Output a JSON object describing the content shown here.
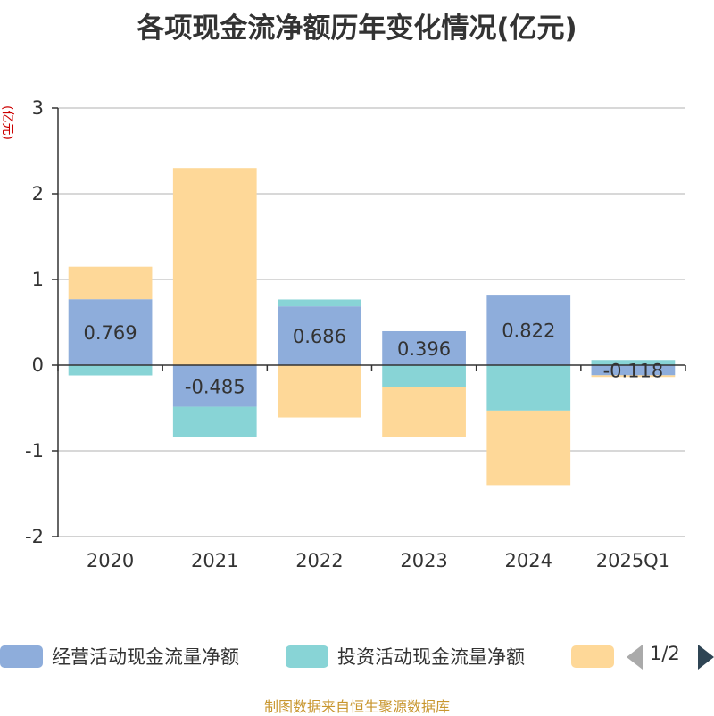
{
  "title": "各项现金流净额历年变化情况(亿元)",
  "source": "制图数据来自恒生聚源数据库",
  "pager": "1/2",
  "colors": {
    "series": [
      "#8eaddb",
      "#88d4d6",
      "#fed898"
    ],
    "axis": "#333333",
    "grid": "#cccccc",
    "unit": "#cc0000"
  },
  "chart_data": {
    "type": "bar",
    "stacked": true,
    "title": "各项现金流净额历年变化情况(亿元)",
    "ylabel": "(亿元)",
    "ylim": [
      -2,
      3
    ],
    "yticks": [
      -2,
      -1,
      0,
      1,
      2,
      3
    ],
    "grid": true,
    "legend_position": "bottom",
    "categories": [
      "2020",
      "2021",
      "2022",
      "2023",
      "2024",
      "2025Q1"
    ],
    "series": [
      {
        "name": "经营活动现金流量净额",
        "values": [
          0.769,
          -0.485,
          0.686,
          0.396,
          0.822,
          -0.118
        ],
        "labels": [
          "0.769",
          "-0.485",
          "0.686",
          "0.396",
          "0.822",
          "-0.118"
        ]
      },
      {
        "name": "投资活动现金流量净额",
        "values": [
          -0.12,
          -0.35,
          0.08,
          -0.26,
          -0.53,
          0.06
        ]
      },
      {
        "name": "",
        "values": [
          0.38,
          2.3,
          -0.61,
          -0.58,
          -0.87,
          -0.02
        ]
      }
    ]
  }
}
